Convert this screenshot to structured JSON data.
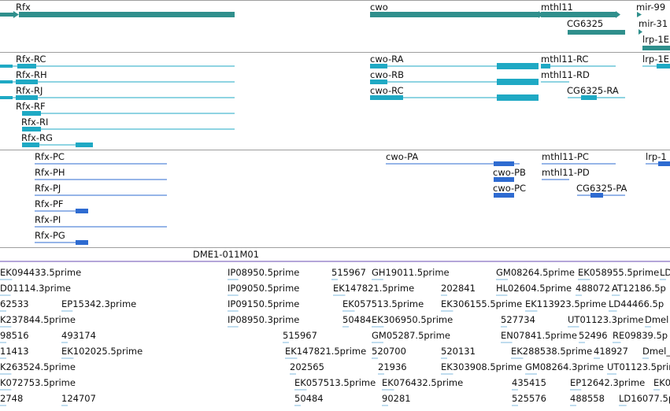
{
  "colors": {
    "gene": "#2f8f8c",
    "transcript_a": "#1fa9c4",
    "transcript_b": "#2e6bd1",
    "clone": "#6a4bb3",
    "est": "#7fb8de",
    "separator": "#9e9e9e"
  },
  "genes_track": {
    "labels": [
      "Rfx",
      "cwo",
      "mthl11",
      "mir-99",
      "CG6325",
      "mir-31",
      "lrp-1E"
    ]
  },
  "transcripts_track_a": {
    "labels": [
      "Rfx-RC",
      "Rfx-RH",
      "Rfx-RJ",
      "Rfx-RF",
      "Rfx-RI",
      "Rfx-RG",
      "cwo-RA",
      "cwo-RB",
      "cwo-RC",
      "mthl11-RC",
      "mthl11-RD",
      "CG6325-RA",
      "lrp-1E"
    ]
  },
  "transcripts_track_b": {
    "labels": [
      "Rfx-PC",
      "Rfx-PH",
      "Rfx-PJ",
      "Rfx-PF",
      "Rfx-PI",
      "Rfx-PG",
      "cwo-PA",
      "cwo-PB",
      "cwo-PC",
      "mthl11-PC",
      "mthl11-PD",
      "CG6325-PA",
      "lrp-1"
    ]
  },
  "clone_track": {
    "label": "DME1-011M01"
  },
  "est_track": {
    "labels": [
      "EK094433.5prime",
      "IP08950.5prime",
      "515967",
      "GH19011.5prime",
      "GM08264.5prime",
      "EK058955.5prime",
      "LD",
      "D01114.3prime",
      "IP09050.5prime",
      "EK147821.5prime",
      "202841",
      "HL02604.5prime",
      "488072",
      "AT12186.5p",
      "62533",
      "EP15342.3prime",
      "IP09150.5prime",
      "EK057513.5prime",
      "EK306155.5prime",
      "EK113923.5prime",
      "LD44466.5p",
      "K237844.5prime",
      "IP08950.3prime",
      "50484",
      "EK306950.5prime",
      "527734",
      "UT01123.3prime",
      "Dmel",
      "98516",
      "493174",
      "515967",
      "GM05287.5prime",
      "EN07841.5prime",
      "52496",
      "RE09839.5p",
      "11413",
      "EK102025.5prime",
      "EK147821.5prime",
      "520700",
      "520131",
      "EK288538.5prime",
      "418927",
      "Dmel_",
      "K263524.5prime",
      "202565",
      "21936",
      "EK303908.5prime",
      "GM08264.3prime",
      "UT01123.5prime",
      "K072753.5prime",
      "EK057513.5prime",
      "EK076432.5prime",
      "435415",
      "EP12642.3prime",
      "EK0",
      "2748",
      "124707",
      "50484",
      "90281",
      "525576",
      "488558",
      "LD16077.5p"
    ]
  }
}
